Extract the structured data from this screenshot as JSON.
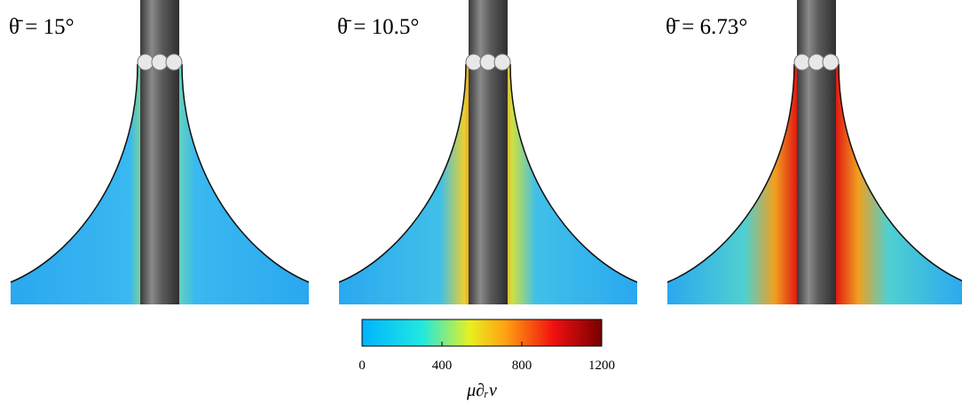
{
  "panels": [
    {
      "label": "θ̄ = 15°"
    },
    {
      "label": "θ̄ = 10.5°"
    },
    {
      "label": "θ̄ = 6.73°"
    }
  ],
  "colorbar": {
    "lim": [
      0,
      1200
    ],
    "ticks": [
      0,
      400,
      800,
      1200
    ],
    "label": "μ∂ᵣv"
  }
}
